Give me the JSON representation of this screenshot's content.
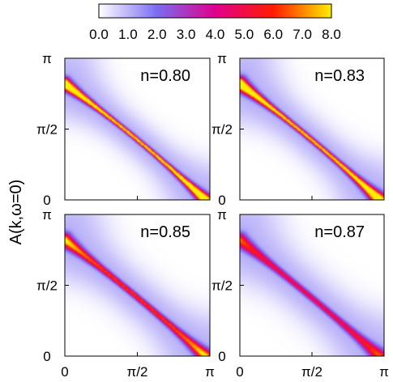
{
  "chart_data": {
    "type": "heatmap",
    "ylabel": "A(k,ω=0)",
    "colorbar": {
      "ticks": [
        "0.0",
        "1.0",
        "2.0",
        "3.0",
        "4.0",
        "5.0",
        "6.0",
        "7.0",
        "8.0"
      ],
      "range": [
        0,
        8
      ],
      "colors": [
        "#ffffff",
        "#7b6cf2",
        "#e0008e",
        "#ff1c00",
        "#ffee00"
      ]
    },
    "x_ticks": [
      "0",
      "π/2",
      "π"
    ],
    "y_ticks": [
      "0",
      "π/2",
      "π"
    ],
    "panels": [
      {
        "label": "n=0.80",
        "n": 0.8,
        "peak": 9.0,
        "width": 0.09,
        "curve": 0.9,
        "ends": 1.6
      },
      {
        "label": "n=0.83",
        "n": 0.83,
        "peak": 8.6,
        "width": 0.1,
        "curve": 0.8,
        "ends": 1.7
      },
      {
        "label": "n=0.85",
        "n": 0.85,
        "peak": 6.2,
        "width": 0.11,
        "curve": 0.55,
        "ends": 1.5
      },
      {
        "label": "n=0.87",
        "n": 0.87,
        "peak": 4.8,
        "width": 0.12,
        "curve": 0.45,
        "ends": 1.3
      }
    ]
  }
}
